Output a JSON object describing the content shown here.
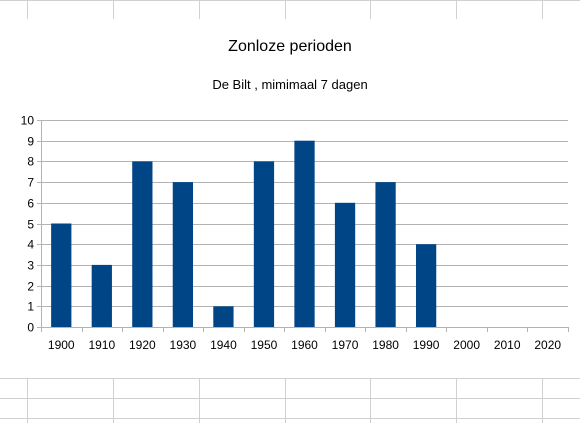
{
  "colors": {
    "bar": "#004586",
    "grid": "#b3b3b3",
    "sheet_grid": "#d0d0d0",
    "text": "#000000"
  },
  "chart_data": {
    "type": "bar",
    "title": "Zonloze perioden",
    "subtitle": "De Bilt , mimimaal 7 dagen",
    "categories": [
      "1900",
      "1910",
      "1920",
      "1930",
      "1940",
      "1950",
      "1960",
      "1970",
      "1980",
      "1990",
      "2000",
      "2010",
      "2020"
    ],
    "values": [
      5,
      3,
      8,
      7,
      1,
      8,
      9,
      6,
      7,
      4,
      null,
      null,
      null
    ],
    "ylim": [
      0,
      10
    ],
    "yticks": [
      "0",
      "1",
      "2",
      "3",
      "4",
      "5",
      "6",
      "7",
      "8",
      "9",
      "10"
    ],
    "grid": true,
    "legend": "none"
  }
}
